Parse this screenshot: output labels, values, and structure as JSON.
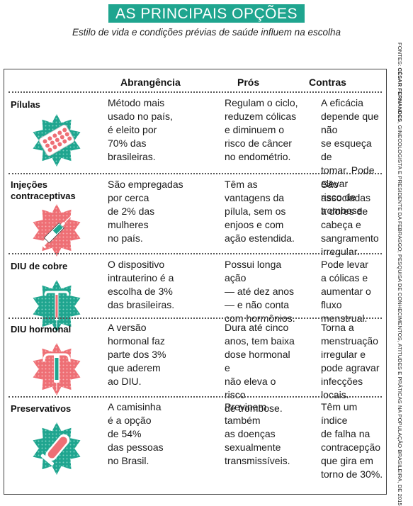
{
  "header": {
    "title": "AS PRINCIPAIS OPÇÕES",
    "subtitle": "Estilo de vida e condições prévias de saúde influem na escolha"
  },
  "source": {
    "prefix": "FONTES: ",
    "name": "CÉSAR FERNANDES",
    "text": ", GINECOLOGISTA E PRESIDENTE DA FEBRASGO; PESQUISA DE CONHECIMENTOS, ATITUDES E PRÁTICAS NA POPULAÇÃO BRASILEIRA, DE 2015"
  },
  "columns": [
    "Abrangência",
    "Prós",
    "Contras"
  ],
  "colors": {
    "accent": "#1fa58f",
    "pink": "#ee6f75"
  },
  "rows": [
    {
      "name": "Pílulas",
      "icon": "pill-pack-icon",
      "abrangencia": [
        "Método mais",
        "usado no país,",
        "é eleito por",
        "70% das",
        "brasileiras."
      ],
      "pros": [
        "Regulam o ciclo,",
        "reduzem cólicas",
        "e diminuem o",
        "risco de câncer",
        "no endométrio."
      ],
      "contras": [
        "A eficácia",
        "depende que não",
        "se esqueça de",
        "tomar. Pode elevar",
        "risco de trombose."
      ]
    },
    {
      "name": "Injeções contraceptivas",
      "icon": "syringe-icon",
      "abrangencia": [
        "São empregadas",
        "por cerca",
        "de 2% das",
        "mulheres",
        "no país."
      ],
      "pros": [
        "Têm as",
        "vantagens da",
        "pílula, sem os",
        "enjoos e com",
        "ação estendida."
      ],
      "contras": [
        "São associadas",
        "a dores de",
        "cabeça e",
        "sangramento",
        "irregular."
      ]
    },
    {
      "name": "DIU de cobre",
      "icon": "copper-iud-icon",
      "abrangencia": [
        "O dispositivo",
        "intrauterino é a",
        "escolha de 3%",
        "das brasileiras."
      ],
      "pros": [
        "Possui longa ação",
        "— até dez anos",
        "— e não conta",
        "com hormônios."
      ],
      "contras": [
        "Pode levar",
        "a cólicas e",
        "aumentar o",
        "fluxo menstrual."
      ]
    },
    {
      "name": "DIU hormonal",
      "icon": "hormonal-iud-icon",
      "abrangencia": [
        "A versão",
        "hormonal faz",
        "parte dos 3%",
        "que aderem",
        "ao DIU."
      ],
      "pros": [
        "Dura até cinco",
        "anos, tem baixa",
        "dose hormonal e",
        "não eleva o risco",
        "de trombose."
      ],
      "contras": [
        "Torna a",
        "menstruação",
        "irregular e",
        "pode agravar",
        "infecções locais."
      ]
    },
    {
      "name": "Preservativos",
      "icon": "condom-icon",
      "abrangencia": [
        "A camisinha",
        "é a opção",
        "de 54%",
        "das pessoas",
        "no Brasil."
      ],
      "pros": [
        "Previnem",
        "também",
        "as doenças",
        "sexualmente",
        "transmissíveis."
      ],
      "contras": [
        "Têm um índice",
        "de falha na",
        "contracepção",
        "que gira em",
        "torno de 30%."
      ]
    }
  ]
}
